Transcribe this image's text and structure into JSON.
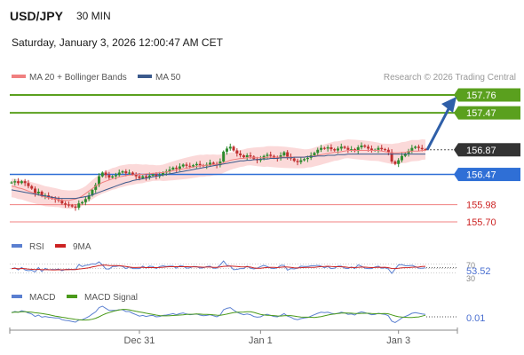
{
  "header": {
    "symbol": "USD/JPY",
    "timeframe": "30 MIN",
    "datetime": "Saturday, January 3, 2026 12:00:47 AM CET"
  },
  "legend": {
    "ma20": "MA 20 + Bollinger Bands",
    "ma50": "MA 50",
    "ma20_color": "#f08080",
    "ma50_color": "#3b5a8c"
  },
  "credit": "Research © 2026 Trading Central",
  "colors": {
    "resistance": "#5aa01e",
    "support": "#2f6fd6",
    "pivot": "#333333",
    "target_line": "#f08080",
    "target_text": "#cc2222",
    "arrow": "#2f5fa8",
    "candle_up": "#2e8b2e",
    "candle_down": "#c03030",
    "band_fill": "#fbd9d9"
  },
  "chart_data": [
    {
      "type": "line",
      "name": "price",
      "chart_type": "candlestick",
      "x_axis": {
        "ticks": [
          {
            "label": "Dec 31",
            "index": 38
          },
          {
            "label": "Jan 1",
            "index": 74
          },
          {
            "label": "Jan 3",
            "index": 115
          }
        ]
      },
      "levels": [
        {
          "value": "157.76",
          "kind": "resistance"
        },
        {
          "value": "157.47",
          "kind": "resistance"
        },
        {
          "value": "156.87",
          "kind": "pivot"
        },
        {
          "value": "156.47",
          "kind": "support"
        },
        {
          "value": "155.98",
          "kind": "target"
        },
        {
          "value": "155.70",
          "kind": "target"
        }
      ],
      "ylim": [
        155.55,
        157.95
      ],
      "closes": [
        156.34,
        156.36,
        156.33,
        156.36,
        156.33,
        156.28,
        156.24,
        156.16,
        156.19,
        156.12,
        156.13,
        156.1,
        156.08,
        156.06,
        156.05,
        156.0,
        155.98,
        155.97,
        155.95,
        155.93,
        156.0,
        156.02,
        156.07,
        156.13,
        156.22,
        156.3,
        156.44,
        156.5,
        156.46,
        156.42,
        156.44,
        156.46,
        156.5,
        156.52,
        156.49,
        156.5,
        156.47,
        156.44,
        156.41,
        156.44,
        156.42,
        156.45,
        156.47,
        156.44,
        156.46,
        156.5,
        156.52,
        156.55,
        156.58,
        156.56,
        156.6,
        156.63,
        156.61,
        156.6,
        156.62,
        156.64,
        156.62,
        156.61,
        156.63,
        156.66,
        156.64,
        156.62,
        156.68,
        156.84,
        156.89,
        156.92,
        156.86,
        156.81,
        156.78,
        156.75,
        156.78,
        156.76,
        156.72,
        156.7,
        156.72,
        156.77,
        156.79,
        156.77,
        156.74,
        156.73,
        156.78,
        156.83,
        156.76,
        156.73,
        156.69,
        156.67,
        156.7,
        156.72,
        156.74,
        156.78,
        156.82,
        156.87,
        156.9,
        156.89,
        156.91,
        156.88,
        156.86,
        156.89,
        156.92,
        156.9,
        156.87,
        156.88,
        156.85,
        156.91,
        156.94,
        156.92,
        156.89,
        156.86,
        156.87,
        156.9,
        156.88,
        156.87,
        156.83,
        156.68,
        156.64,
        156.7,
        156.77,
        156.81,
        156.85,
        156.9,
        156.92,
        156.9,
        156.88,
        156.87
      ],
      "ma20": [
        156.28,
        156.27,
        156.25,
        156.24,
        156.22,
        156.2,
        156.18,
        156.16,
        156.14,
        156.12,
        156.1,
        156.09,
        156.08,
        156.07,
        156.06,
        156.05,
        156.05,
        156.05,
        156.06,
        156.07,
        156.09,
        156.12,
        156.16,
        156.2,
        156.24,
        156.28,
        156.31,
        156.34,
        156.36,
        156.38,
        156.4,
        156.41,
        156.43,
        156.44,
        156.45,
        156.46,
        156.46,
        156.47,
        156.47,
        156.47,
        156.48,
        156.48,
        156.49,
        156.49,
        156.5,
        156.5,
        156.51,
        156.52,
        156.53,
        156.54,
        156.55,
        156.56,
        156.57,
        156.58,
        156.59,
        156.6,
        156.61,
        156.61,
        156.62,
        156.62,
        156.63,
        156.63,
        156.64,
        156.66,
        156.68,
        156.7,
        156.71,
        156.72,
        156.73,
        156.73,
        156.74,
        156.74,
        156.74,
        156.74,
        156.74,
        156.74,
        156.75,
        156.75,
        156.75,
        156.75,
        156.75,
        156.75,
        156.75,
        156.75,
        156.75,
        156.75,
        156.75,
        156.75,
        156.76,
        156.76,
        156.77,
        156.78,
        156.79,
        156.8,
        156.81,
        156.82,
        156.83,
        156.83,
        156.84,
        156.85,
        156.86,
        156.86,
        156.86,
        156.86,
        156.86,
        156.86,
        156.86,
        156.86,
        156.86,
        156.86,
        156.85,
        156.84,
        156.83,
        156.82,
        156.82,
        156.82,
        156.83,
        156.83,
        156.84,
        156.85,
        156.85,
        156.85,
        156.86,
        156.86
      ],
      "ma50": [
        156.22,
        156.21,
        156.2,
        156.19,
        156.18,
        156.17,
        156.16,
        156.15,
        156.14,
        156.13,
        156.12,
        156.11,
        156.1,
        156.09,
        156.08,
        156.08,
        156.08,
        156.08,
        156.08,
        156.08,
        156.09,
        156.1,
        156.11,
        156.12,
        156.14,
        156.16,
        156.18,
        156.2,
        156.22,
        156.24,
        156.26,
        156.28,
        156.3,
        156.32,
        156.34,
        156.35,
        156.37,
        156.38,
        156.39,
        156.4,
        156.41,
        156.42,
        156.43,
        156.44,
        156.45,
        156.46,
        156.47,
        156.48,
        156.49,
        156.5,
        156.51,
        156.52,
        156.53,
        156.54,
        156.55,
        156.56,
        156.57,
        156.58,
        156.59,
        156.6,
        156.61,
        156.62,
        156.63,
        156.64,
        156.65,
        156.66,
        156.67,
        156.68,
        156.69,
        156.69,
        156.7,
        156.7,
        156.71,
        156.71,
        156.72,
        156.72,
        156.72,
        156.73,
        156.73,
        156.73,
        156.74,
        156.74,
        156.74,
        156.74,
        156.75,
        156.75,
        156.75,
        156.75,
        156.76,
        156.76,
        156.76,
        156.77,
        156.77,
        156.77,
        156.78,
        156.78,
        156.78,
        156.79,
        156.79,
        156.79,
        156.8,
        156.8,
        156.8,
        156.8,
        156.8,
        156.8,
        156.8,
        156.8,
        156.8,
        156.8,
        156.8,
        156.8,
        156.8,
        156.8,
        156.8,
        156.8,
        156.8,
        156.8,
        156.8,
        156.8,
        156.8,
        156.8,
        156.8,
        156.8
      ]
    },
    {
      "type": "line",
      "name": "RSI",
      "legend": [
        "RSI",
        "9MA"
      ],
      "series_colors": [
        "#5a7fd0",
        "#cc2222"
      ],
      "axis_labels": [
        "70",
        "30"
      ],
      "current_value": "53.52",
      "ylim": [
        0,
        100
      ]
    },
    {
      "type": "line",
      "name": "MACD",
      "legend": [
        "MACD",
        "MACD Signal"
      ],
      "series_colors": [
        "#5a7fd0",
        "#4a9a1a"
      ],
      "current_value": "0.01"
    }
  ]
}
